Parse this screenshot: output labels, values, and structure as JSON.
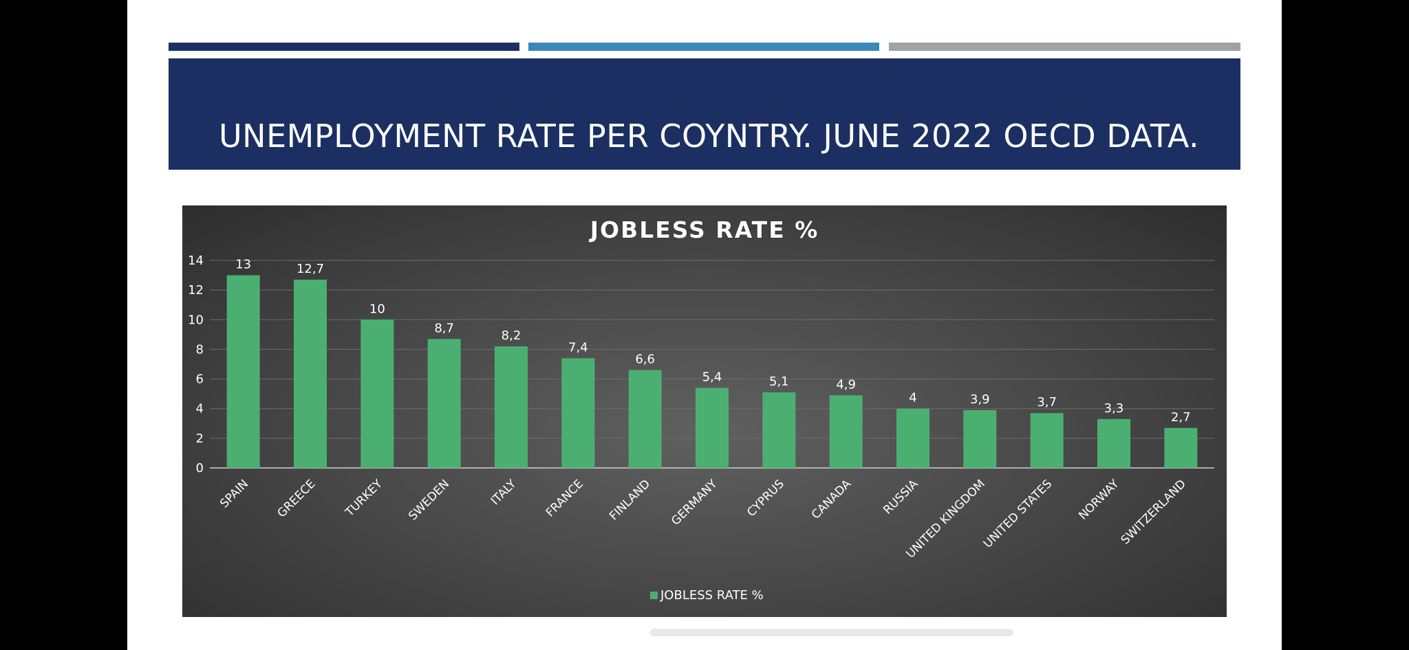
{
  "slide": {
    "title": "UNEMPLOYMENT RATE PER COYNTRY.  JUNE 2022 OECD DATA.",
    "accent_colors": [
      "#1b2f63",
      "#3a87b8",
      "#9ea3a8"
    ]
  },
  "chart_data": {
    "type": "bar",
    "title": "JOBLESS RATE %",
    "categories": [
      "SPAIN",
      "GREECE",
      "TURKEY",
      "SWEDEN",
      "ITALY",
      "FRANCE",
      "FINLAND",
      "GERMANY",
      "CYPRUS",
      "CANADA",
      "RUSSIA",
      "UNITED KINGDOM",
      "UNITED STATES",
      "NORWAY",
      "SWITZERLAND"
    ],
    "series": [
      {
        "name": "JOBLESS RATE %",
        "values": [
          13,
          12.7,
          10,
          8.7,
          8.2,
          7.4,
          6.6,
          5.4,
          5.1,
          4.9,
          4,
          3.9,
          3.7,
          3.3,
          2.7
        ],
        "color": "#4caf72"
      }
    ],
    "data_labels": [
      "13",
      "12,7",
      "10",
      "8,7",
      "8,2",
      "7,4",
      "6,6",
      "5,4",
      "5,1",
      "4,9",
      "4",
      "3,9",
      "3,7",
      "3,3",
      "2,7"
    ],
    "ylim": [
      0,
      14
    ],
    "yticks": [
      "0",
      "2",
      "4",
      "6",
      "8",
      "10",
      "12",
      "14"
    ],
    "grid": true,
    "legend": "bottom"
  }
}
